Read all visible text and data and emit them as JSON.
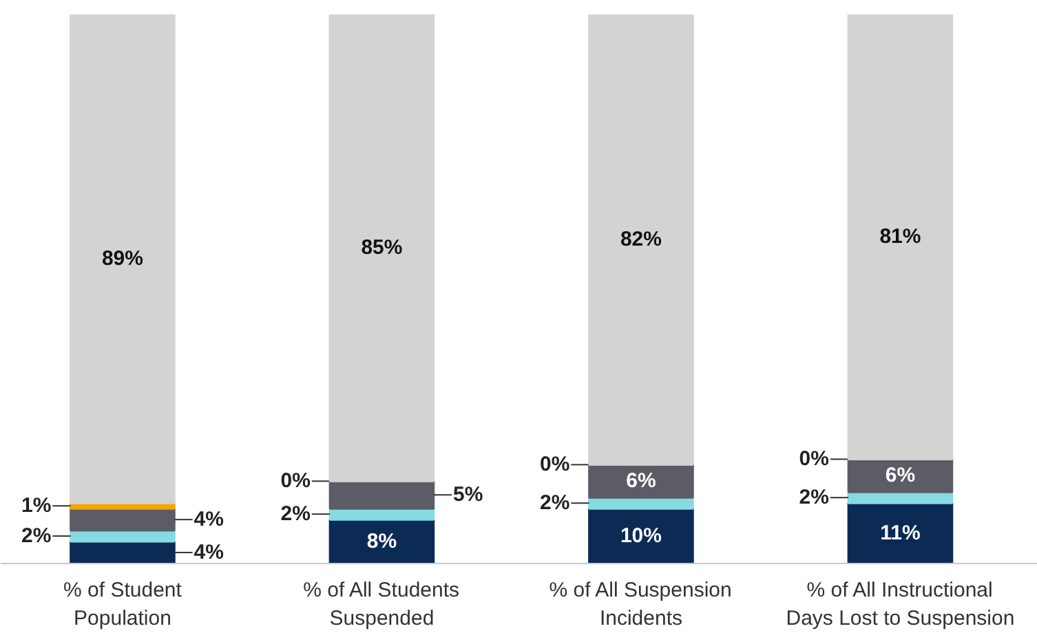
{
  "chart_data": {
    "type": "bar",
    "stacked": true,
    "categories": [
      "% of Student\nPopulation",
      "% of All Students\nSuspended",
      "% of All Suspension\nIncidents",
      "% of All Instructional\nDays Lost to Suspension"
    ],
    "series": [
      {
        "color": "#0b2b55",
        "values": [
          4,
          8,
          10,
          11
        ],
        "value_labels": [
          "4%",
          "8%",
          "10%",
          "11%"
        ]
      },
      {
        "color": "#86dbe3",
        "values": [
          2,
          2,
          2,
          2
        ],
        "value_labels": [
          "2%",
          "2%",
          "2%",
          "2%"
        ]
      },
      {
        "color": "#5c5c66",
        "values": [
          4,
          5,
          6,
          6
        ],
        "value_labels": [
          "4%",
          "5%",
          "6%",
          "6%"
        ]
      },
      {
        "color": "#f0a800",
        "values": [
          1,
          0,
          0,
          0
        ],
        "value_labels": [
          "1%",
          "0%",
          "0%",
          "0%"
        ]
      },
      {
        "color": "#d3d3d3",
        "values": [
          89,
          85,
          82,
          81
        ],
        "value_labels": [
          "89%",
          "85%",
          "82%",
          "81%"
        ]
      }
    ]
  }
}
